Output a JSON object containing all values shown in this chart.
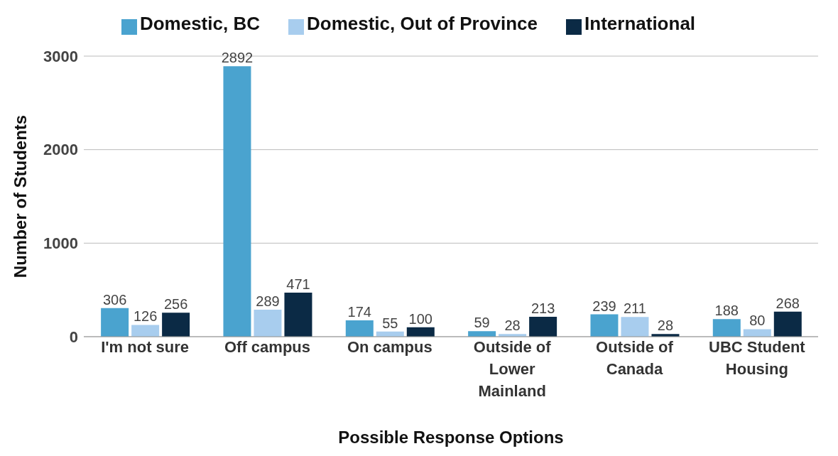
{
  "chart_data": {
    "type": "bar",
    "xlabel": "Possible Response Options",
    "ylabel": "Number of Students",
    "categories": [
      "I'm not sure",
      "Off campus",
      "On campus",
      "Outside of Lower Mainland",
      "Outside of Canada",
      "UBC Student Housing"
    ],
    "series": [
      {
        "name": "Domestic, BC",
        "color": "#4aa3cf",
        "values": [
          306,
          2892,
          174,
          59,
          239,
          188
        ]
      },
      {
        "name": "Domestic, Out of Province",
        "color": "#a8cdee",
        "values": [
          126,
          289,
          55,
          28,
          211,
          80
        ]
      },
      {
        "name": "International",
        "color": "#0b2a45",
        "values": [
          256,
          471,
          100,
          213,
          28,
          268
        ]
      }
    ],
    "ylim": [
      0,
      3000
    ],
    "yticks": [
      0,
      1000,
      2000,
      3000
    ],
    "grid": "y",
    "legend": "top",
    "data_labels": true
  }
}
